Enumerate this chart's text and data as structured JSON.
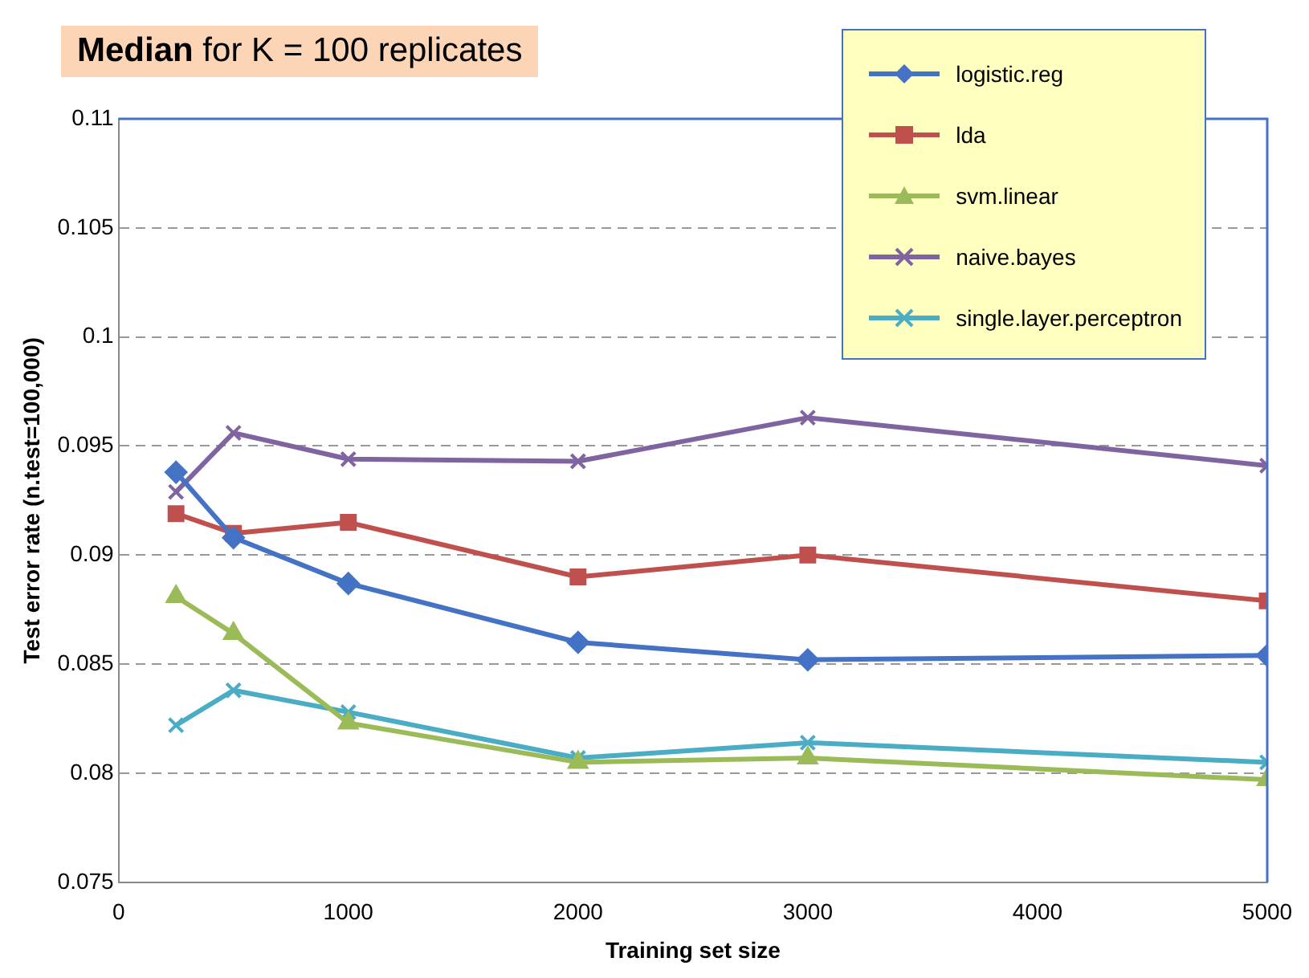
{
  "chart_data": {
    "type": "line",
    "title": "Median for K = 100 replicates",
    "xlabel": "Training set size",
    "ylabel": "Test error rate (n.test=100,000)",
    "x": [
      250,
      500,
      1000,
      2000,
      3000,
      5000
    ],
    "series": [
      {
        "name": "logistic.reg",
        "color": "#4472c4",
        "marker": "diamond",
        "values": [
          0.0938,
          0.0908,
          0.0887,
          0.086,
          0.0852,
          0.0854
        ]
      },
      {
        "name": "lda",
        "color": "#c0504d",
        "marker": "square",
        "values": [
          0.0919,
          0.091,
          0.0915,
          0.089,
          0.09,
          0.0879
        ]
      },
      {
        "name": "svm.linear",
        "color": "#9bbb59",
        "marker": "triangle",
        "values": [
          0.0881,
          0.0864,
          0.0823,
          0.0805,
          0.0807,
          0.0797
        ]
      },
      {
        "name": "naive.bayes",
        "color": "#8064a2",
        "marker": "cross",
        "values": [
          0.0929,
          0.0956,
          0.0944,
          0.0943,
          0.0963,
          0.0941
        ]
      },
      {
        "name": "single.layer.perceptron",
        "color": "#4bacc6",
        "marker": "cross",
        "values": [
          0.0822,
          0.0838,
          0.0828,
          0.0807,
          0.0814,
          0.0805
        ]
      }
    ],
    "xlim": [
      0,
      5000
    ],
    "xticks": [
      0,
      1000,
      2000,
      3000,
      4000,
      5000
    ],
    "ylim": [
      0.075,
      0.11
    ],
    "yticks": [
      0.075,
      0.08,
      0.085,
      0.09,
      0.095,
      0.1,
      0.105,
      0.11
    ],
    "grid": "y",
    "legend": "top right",
    "line_style": "solid"
  }
}
